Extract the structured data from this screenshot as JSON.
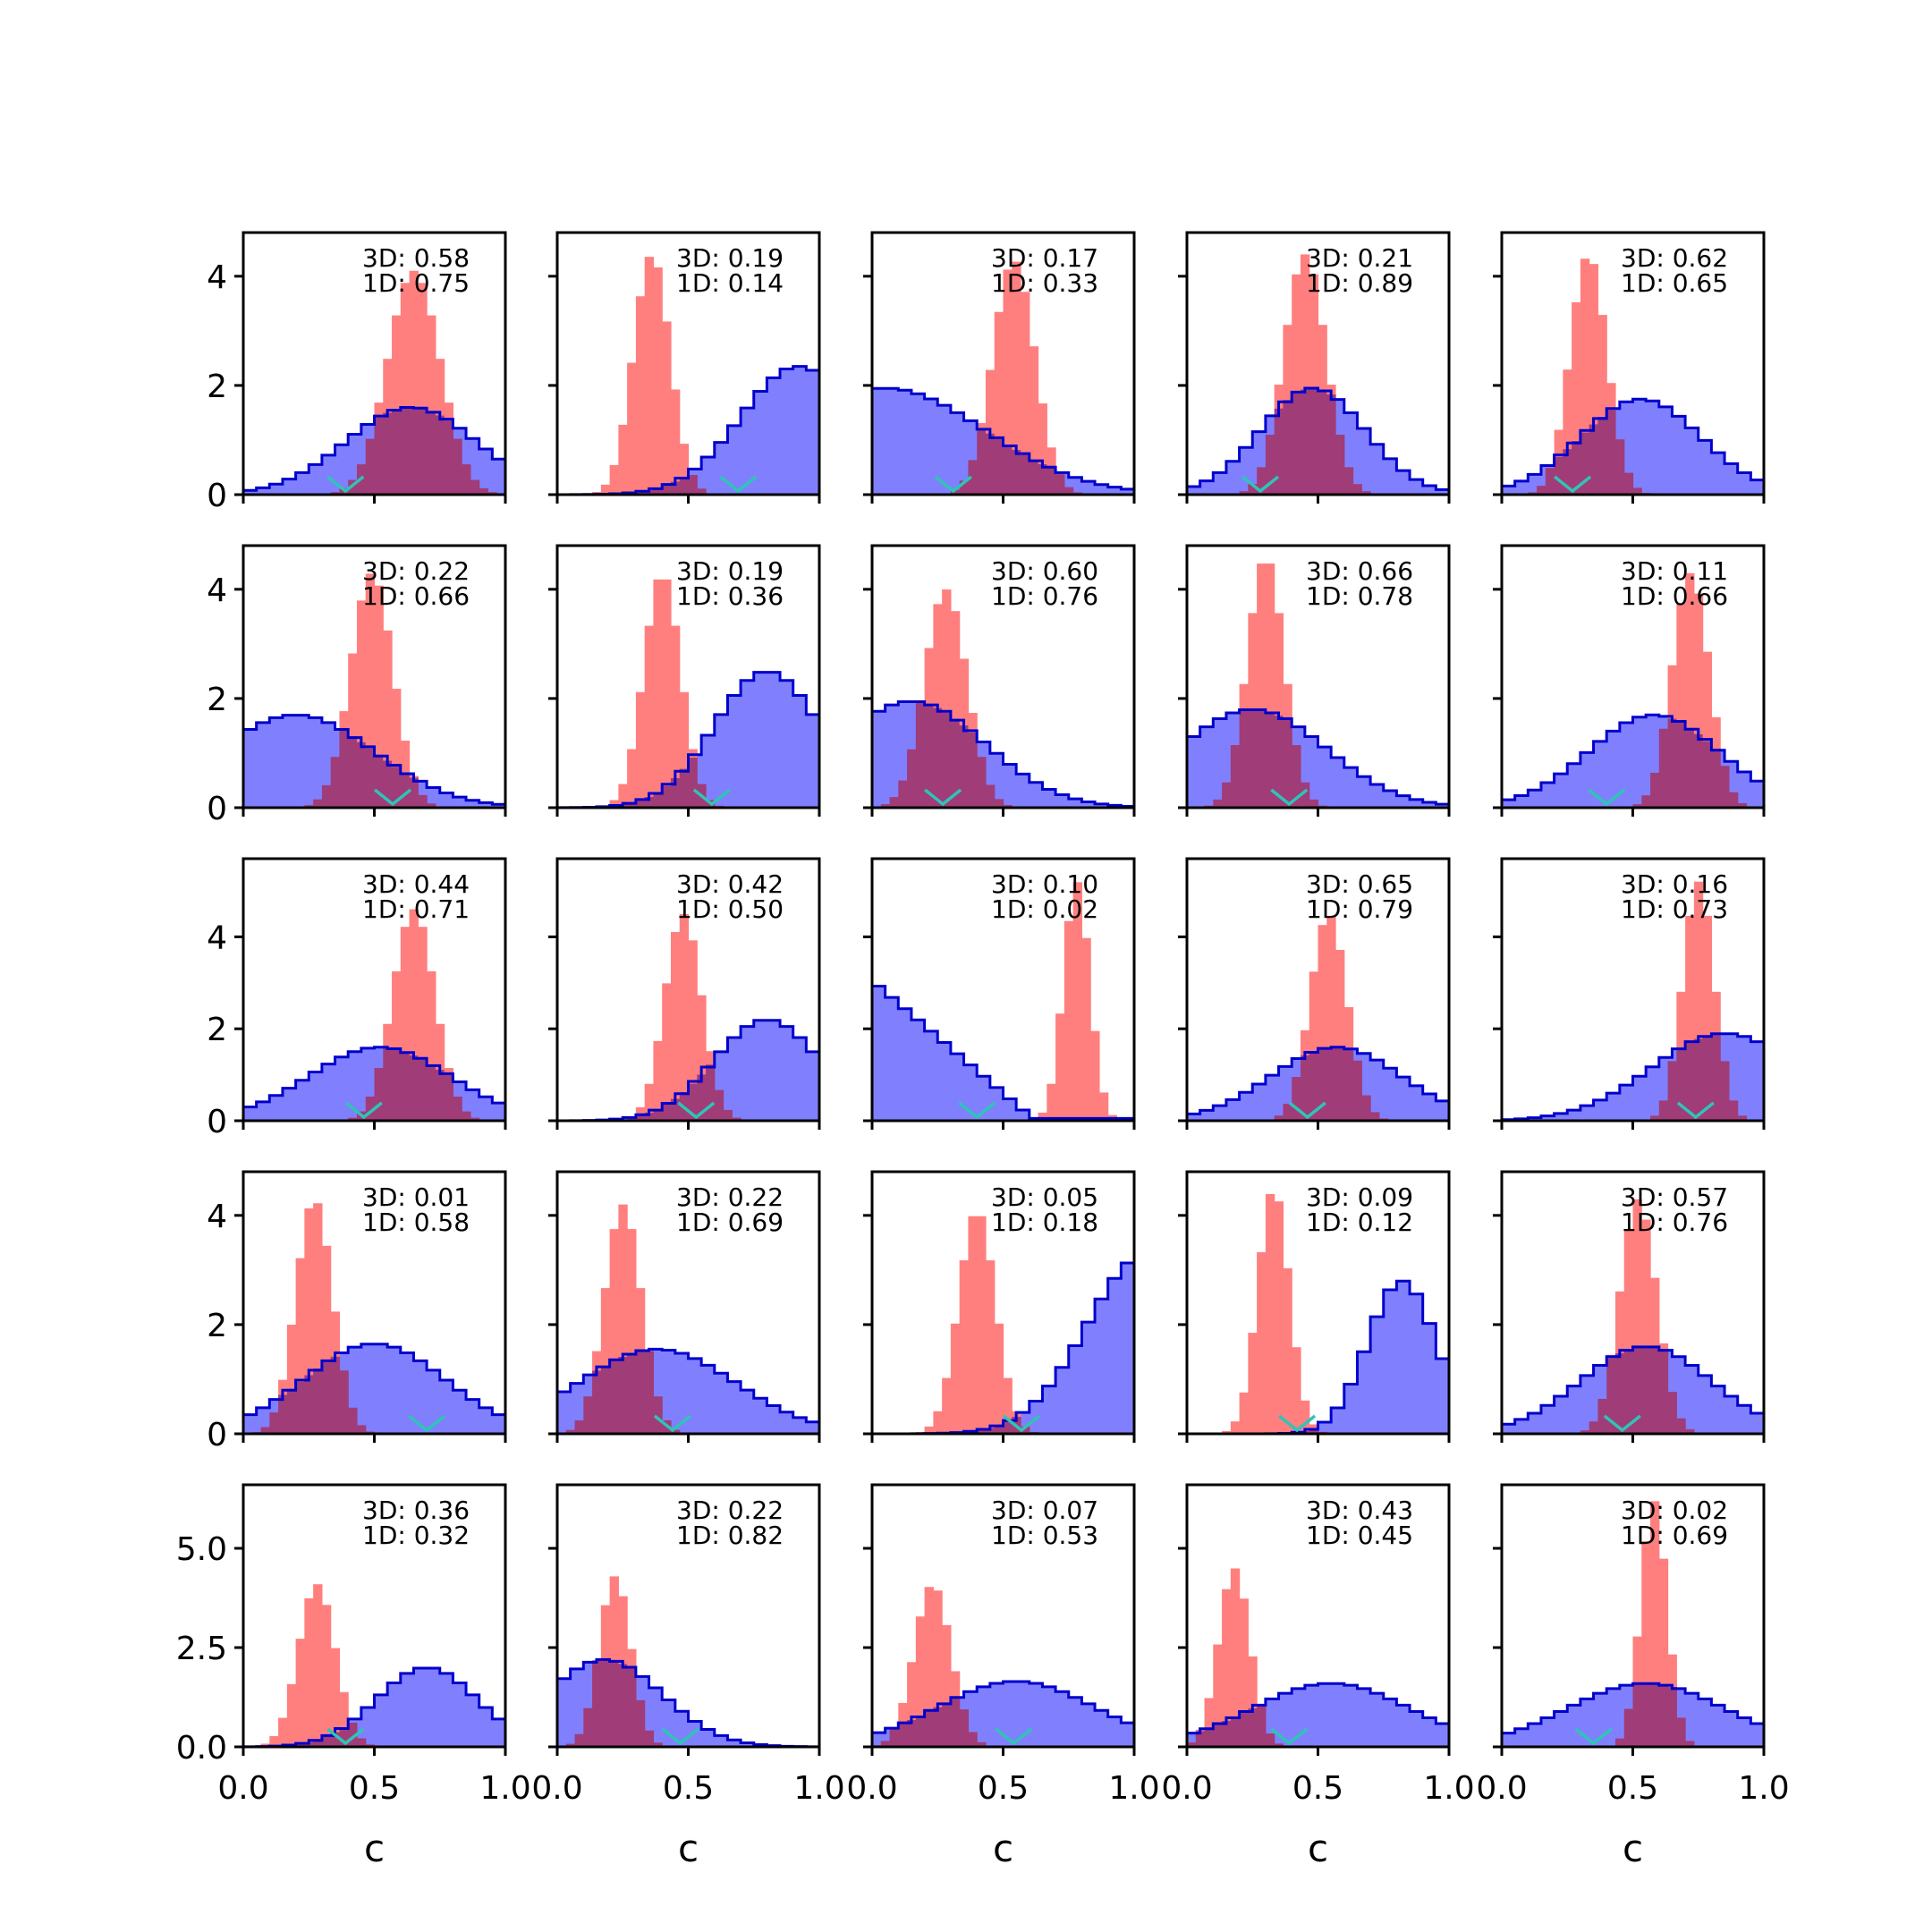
{
  "chart_data": {
    "type": "histogram-grid",
    "rows": 5,
    "cols": 5,
    "xlabel": "c",
    "xlim": [
      0,
      1
    ],
    "x_ticks": [
      "0.0",
      "0.5",
      "1.0"
    ],
    "y_ticks_by_row": [
      [
        "0",
        "2",
        "4"
      ],
      [
        "0",
        "2",
        "4"
      ],
      [
        "0",
        "2",
        "4"
      ],
      [
        "0",
        "2",
        "4"
      ],
      [
        "0.0",
        "2.5",
        "5.0"
      ]
    ],
    "ylim_by_row": [
      [
        0,
        4.8
      ],
      [
        0,
        4.8
      ],
      [
        0,
        5.7
      ],
      [
        0,
        4.8
      ],
      [
        0,
        6.6
      ]
    ],
    "colors": {
      "blue_fill": "#8080ff",
      "blue_edge": "#0000cc",
      "red_fill": "#ff7f7f",
      "overlap": "#a03c78",
      "marker": "#2ec4b6"
    },
    "panels": [
      {
        "text3d": "3D: 0.58",
        "text1d": "1D: 0.75",
        "blue": {
          "type": "gauss",
          "mu": 0.64,
          "sd": 0.25,
          "peak": 1.6
        },
        "red": {
          "mu": 0.65,
          "sd": 0.1,
          "peak": 4.1
        },
        "marker": 0.39
      },
      {
        "text3d": "3D: 0.19",
        "text1d": "1D: 0.14",
        "blue": {
          "type": "gauss",
          "mu": 0.92,
          "sd": 0.22,
          "peak": 2.35
        },
        "red": {
          "mu": 0.36,
          "sd": 0.07,
          "peak": 4.4
        },
        "marker": 0.69
      },
      {
        "text3d": "3D: 0.17",
        "text1d": "1D: 0.33",
        "blue": {
          "type": "gauss",
          "mu": 0.05,
          "sd": 0.38,
          "peak": 1.95
        },
        "red": {
          "mu": 0.54,
          "sd": 0.08,
          "peak": 4.3
        },
        "marker": 0.31
      },
      {
        "text3d": "3D: 0.21",
        "text1d": "1D: 0.89",
        "blue": {
          "type": "gauss",
          "mu": 0.48,
          "sd": 0.2,
          "peak": 1.95
        },
        "red": {
          "mu": 0.45,
          "sd": 0.08,
          "peak": 4.4
        },
        "marker": 0.28
      },
      {
        "text3d": "3D: 0.62",
        "text1d": "1D: 0.65",
        "blue": {
          "type": "gauss",
          "mu": 0.53,
          "sd": 0.23,
          "peak": 1.75
        },
        "red": {
          "mu": 0.33,
          "sd": 0.07,
          "peak": 4.4
        },
        "marker": 0.27
      },
      {
        "text3d": "3D: 0.22",
        "text1d": "1D: 0.66",
        "blue": {
          "type": "gauss",
          "mu": 0.2,
          "sd": 0.3,
          "peak": 1.7
        },
        "red": {
          "mu": 0.49,
          "sd": 0.08,
          "peak": 4.3
        },
        "marker": 0.57
      },
      {
        "text3d": "3D: 0.19",
        "text1d": "1D: 0.36",
        "blue": {
          "type": "gauss",
          "mu": 0.8,
          "sd": 0.2,
          "peak": 2.5
        },
        "red": {
          "mu": 0.4,
          "sd": 0.07,
          "peak": 4.3
        },
        "marker": 0.59
      },
      {
        "text3d": "3D: 0.60",
        "text1d": "1D: 0.76",
        "blue": {
          "type": "gauss",
          "mu": 0.15,
          "sd": 0.28,
          "peak": 1.95
        },
        "red": {
          "mu": 0.28,
          "sd": 0.08,
          "peak": 4.0
        },
        "marker": 0.27
      },
      {
        "text3d": "3D: 0.66",
        "text1d": "1D: 0.78",
        "blue": {
          "type": "gauss",
          "mu": 0.25,
          "sd": 0.28,
          "peak": 1.8
        },
        "red": {
          "mu": 0.3,
          "sd": 0.07,
          "peak": 4.6
        },
        "marker": 0.39
      },
      {
        "text3d": "3D: 0.11",
        "text1d": "1D: 0.66",
        "blue": {
          "type": "gauss",
          "mu": 0.58,
          "sd": 0.25,
          "peak": 1.7
        },
        "red": {
          "mu": 0.72,
          "sd": 0.07,
          "peak": 4.3
        },
        "marker": 0.4
      },
      {
        "text3d": "3D: 0.44",
        "text1d": "1D: 0.71",
        "blue": {
          "type": "gauss",
          "mu": 0.52,
          "sd": 0.27,
          "peak": 1.6
        },
        "red": {
          "mu": 0.65,
          "sd": 0.08,
          "peak": 4.6
        },
        "marker": 0.46
      },
      {
        "text3d": "3D: 0.42",
        "text1d": "1D: 0.50",
        "blue": {
          "type": "gauss",
          "mu": 0.8,
          "sd": 0.2,
          "peak": 2.2
        },
        "red": {
          "mu": 0.48,
          "sd": 0.07,
          "peak": 4.5
        },
        "marker": 0.53
      },
      {
        "text3d": "3D: 0.10",
        "text1d": "1D: 0.02",
        "blue": {
          "type": "linear",
          "y0": 3.05,
          "slope": -4.9,
          "floor": 0.05
        },
        "red": {
          "mu": 0.78,
          "sd": 0.05,
          "peak": 5.2
        },
        "marker": 0.4
      },
      {
        "text3d": "3D: 0.65",
        "text1d": "1D: 0.79",
        "blue": {
          "type": "gauss",
          "mu": 0.57,
          "sd": 0.25,
          "peak": 1.6
        },
        "red": {
          "mu": 0.54,
          "sd": 0.07,
          "peak": 4.5
        },
        "marker": 0.46
      },
      {
        "text3d": "3D: 0.16",
        "text1d": "1D: 0.73",
        "blue": {
          "type": "gauss",
          "mu": 0.85,
          "sd": 0.28,
          "peak": 1.9
        },
        "red": {
          "mu": 0.75,
          "sd": 0.06,
          "peak": 5.2
        },
        "marker": 0.74
      },
      {
        "text3d": "3D: 0.01",
        "text1d": "1D: 0.58",
        "blue": {
          "type": "gauss",
          "mu": 0.5,
          "sd": 0.27,
          "peak": 1.65
        },
        "red": {
          "mu": 0.27,
          "sd": 0.07,
          "peak": 4.3
        },
        "marker": 0.7
      },
      {
        "text3d": "3D: 0.22",
        "text1d": "1D: 0.69",
        "blue": {
          "type": "gauss",
          "mu": 0.38,
          "sd": 0.3,
          "peak": 1.55
        },
        "red": {
          "mu": 0.25,
          "sd": 0.07,
          "peak": 4.2
        },
        "marker": 0.44
      },
      {
        "text3d": "3D: 0.05",
        "text1d": "1D: 0.18",
        "blue": {
          "type": "gauss",
          "mu": 1.05,
          "sd": 0.23,
          "peak": 3.3
        },
        "red": {
          "mu": 0.4,
          "sd": 0.07,
          "peak": 4.1
        },
        "marker": 0.57
      },
      {
        "text3d": "3D: 0.09",
        "text1d": "1D: 0.12",
        "blue": {
          "type": "gauss",
          "mu": 0.82,
          "sd": 0.13,
          "peak": 2.8
        },
        "red": {
          "mu": 0.33,
          "sd": 0.06,
          "peak": 4.5
        },
        "marker": 0.42
      },
      {
        "text3d": "3D: 0.57",
        "text1d": "1D: 0.76",
        "blue": {
          "type": "gauss",
          "mu": 0.55,
          "sd": 0.25,
          "peak": 1.6
        },
        "red": {
          "mu": 0.52,
          "sd": 0.07,
          "peak": 4.3
        },
        "marker": 0.46
      },
      {
        "text3d": "3D: 0.36",
        "text1d": "1D: 0.32",
        "blue": {
          "type": "gauss",
          "mu": 0.7,
          "sd": 0.19,
          "peak": 2.0
        },
        "red": {
          "mu": 0.28,
          "sd": 0.07,
          "peak": 4.1
        },
        "marker": 0.39
      },
      {
        "text3d": "3D: 0.22",
        "text1d": "1D: 0.82",
        "blue": {
          "type": "gauss",
          "mu": 0.18,
          "sd": 0.22,
          "peak": 2.2
        },
        "red": {
          "mu": 0.22,
          "sd": 0.06,
          "peak": 4.3
        },
        "marker": 0.47
      },
      {
        "text3d": "3D: 0.07",
        "text1d": "1D: 0.53",
        "blue": {
          "type": "gauss",
          "mu": 0.55,
          "sd": 0.3,
          "peak": 1.65
        },
        "red": {
          "mu": 0.23,
          "sd": 0.07,
          "peak": 4.1
        },
        "marker": 0.54
      },
      {
        "text3d": "3D: 0.43",
        "text1d": "1D: 0.45",
        "blue": {
          "type": "gauss",
          "mu": 0.55,
          "sd": 0.3,
          "peak": 1.6
        },
        "red": {
          "mu": 0.18,
          "sd": 0.06,
          "peak": 4.5
        },
        "marker": 0.39
      },
      {
        "text3d": "3D: 0.02",
        "text1d": "1D: 0.69",
        "blue": {
          "type": "gauss",
          "mu": 0.55,
          "sd": 0.3,
          "peak": 1.6
        },
        "red": {
          "mu": 0.58,
          "sd": 0.05,
          "peak": 6.2
        },
        "marker": 0.35
      }
    ]
  }
}
